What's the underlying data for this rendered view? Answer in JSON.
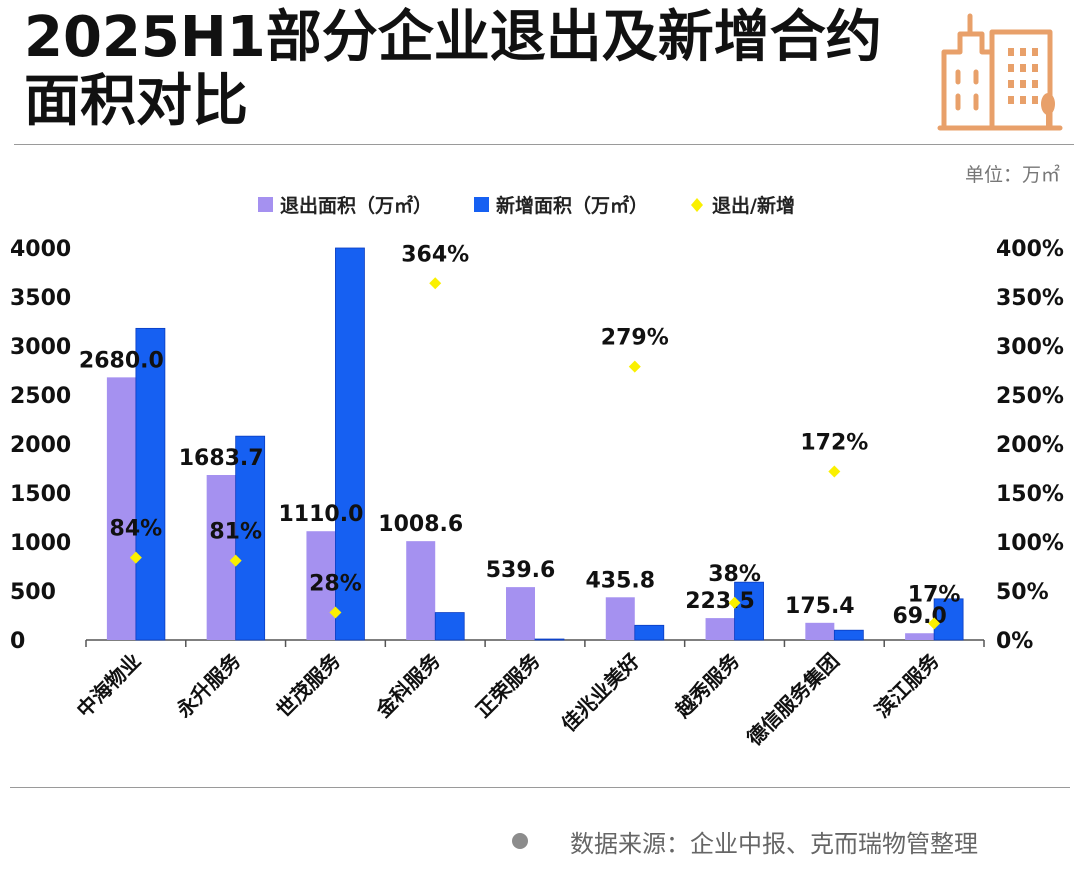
{
  "title_lines": [
    "2025H1部分企业退出及新增合约",
    "面积对比"
  ],
  "unit_label": "单位：万㎡",
  "source_text": "数据来源：企业中报、克而瑞物管整理",
  "colors": {
    "exit": "#A591F0",
    "new": "#1660F2",
    "ratio": "#FAF000",
    "icon": "#E8A06A"
  },
  "chart_data": {
    "type": "bar",
    "title": "2025H1部分企业退出及新增合约面积对比",
    "categories": [
      "中海物业",
      "永升服务",
      "世茂服务",
      "金科服务",
      "正荣服务",
      "佳兆业美好",
      "越秀服务",
      "德信服务集团",
      "滨江服务"
    ],
    "series": [
      {
        "name": "退出面积（万㎡）",
        "kind": "bar",
        "axis": "left",
        "values": [
          2680.0,
          1683.7,
          1110.0,
          1008.6,
          539.6,
          435.8,
          223.5,
          175.4,
          69.0
        ],
        "labels": [
          "2680.0",
          "1683.7",
          "1110.0",
          "1008.6",
          "539.6",
          "435.8",
          "223.5",
          "175.4",
          "69.0"
        ]
      },
      {
        "name": "新增面积（万㎡）",
        "kind": "bar",
        "axis": "left",
        "values": [
          3180,
          2080,
          4000,
          280,
          10,
          150,
          590,
          100,
          420
        ]
      },
      {
        "name": "退出/新增",
        "kind": "scatter",
        "axis": "right",
        "values": [
          84,
          81,
          28,
          364,
          null,
          279,
          38,
          172,
          17
        ],
        "labels": [
          "84%",
          "81%",
          "28%",
          "364%",
          "",
          "279%",
          "38%",
          "172%",
          "17%"
        ]
      }
    ],
    "left_axis": {
      "ylim": [
        0,
        4000
      ],
      "ticks": [
        "0",
        "500",
        "1000",
        "1500",
        "2000",
        "2500",
        "3000",
        "3500",
        "4000"
      ]
    },
    "right_axis": {
      "ylim": [
        0,
        400
      ],
      "ticks": [
        "0%",
        "50%",
        "100%",
        "150%",
        "200%",
        "250%",
        "300%",
        "350%",
        "400%"
      ]
    },
    "legend": {
      "position": "top-center"
    },
    "grid": false
  }
}
